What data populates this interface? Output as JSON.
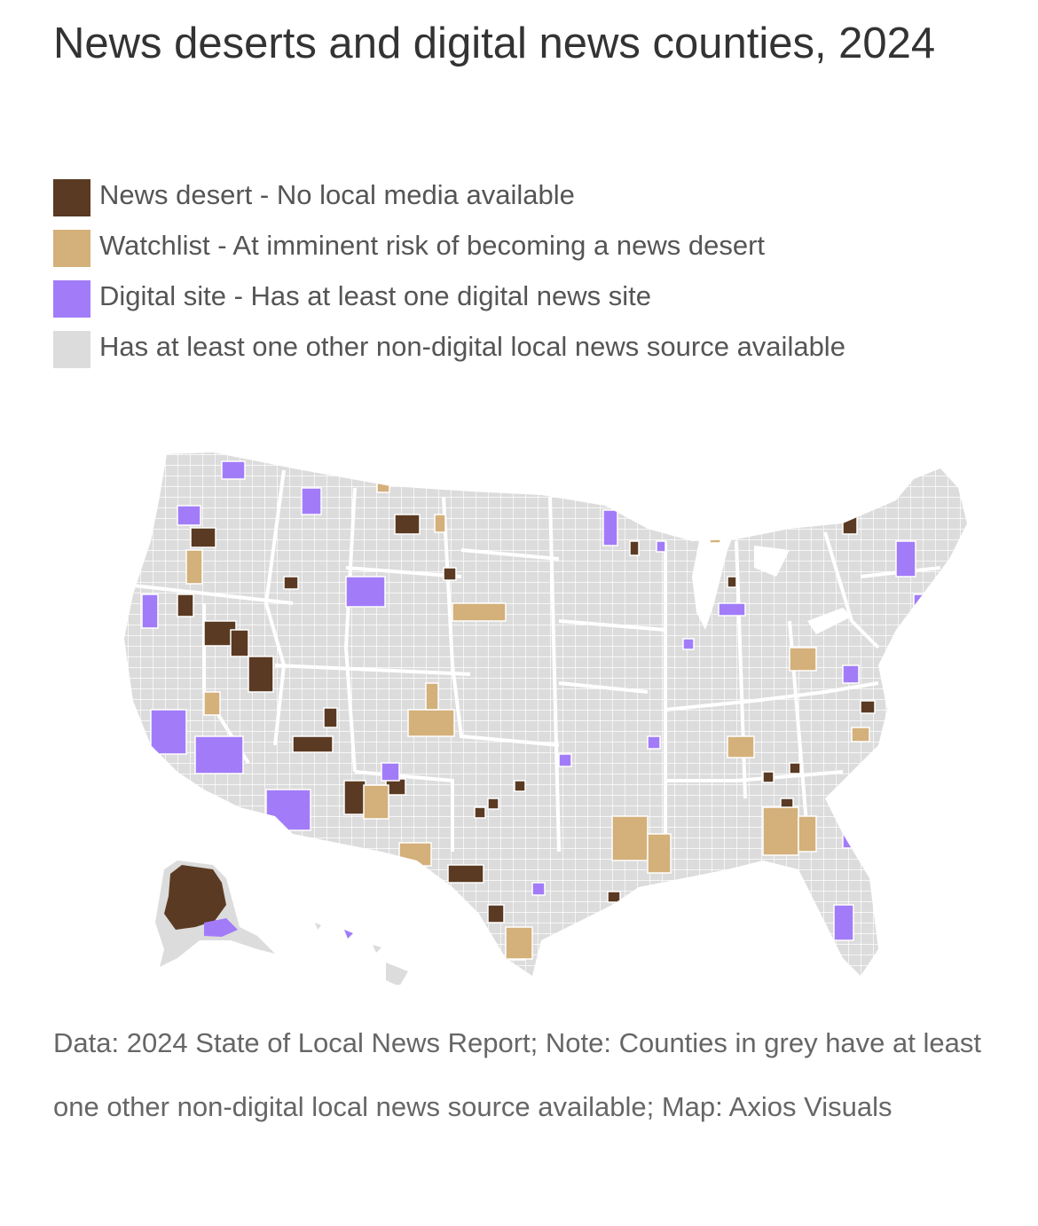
{
  "title": "News deserts and digital news counties, 2024",
  "legend": [
    {
      "label": "News desert - No local media available",
      "color": "#5a3a22"
    },
    {
      "label": "Watchlist - At imminent risk of becoming a news desert",
      "color": "#d4b07a"
    },
    {
      "label": "Digital site - Has at least one digital news site",
      "color": "#a27cf8"
    },
    {
      "label": "Has at least one other non-digital local news source available",
      "color": "#dcdcdc"
    }
  ],
  "map": {
    "region": "United States counties",
    "categories": [
      "News desert",
      "Watchlist",
      "Digital site",
      "Other non-digital source"
    ]
  },
  "footnote": "Data: 2024 State of Local News Report; Note: Counties in grey have at least one other non-digital local news source available; Map: Axios Visuals"
}
